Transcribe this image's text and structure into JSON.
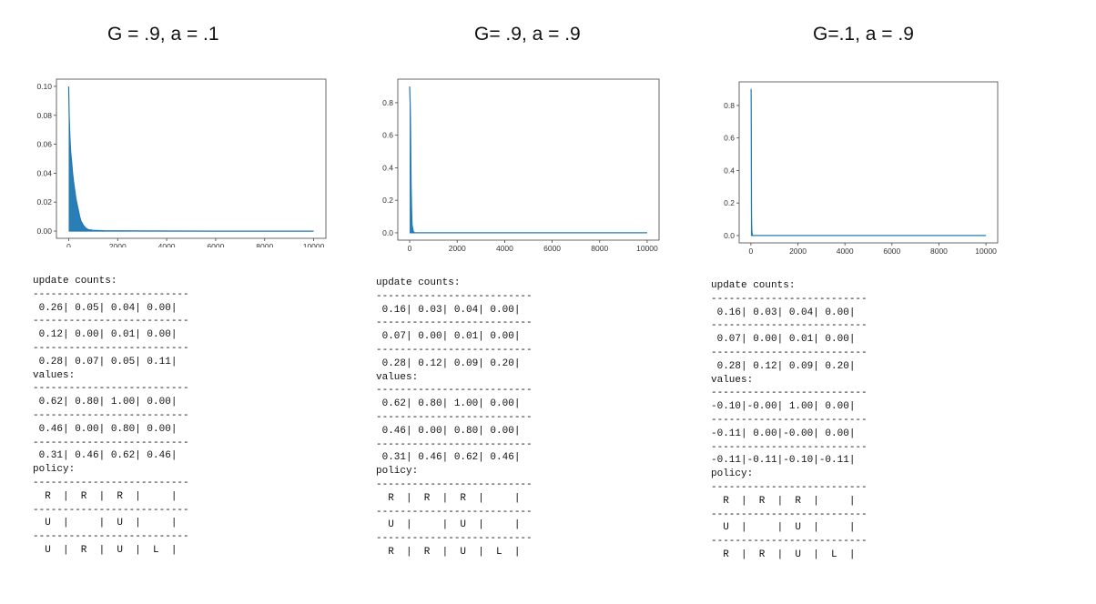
{
  "panels": [
    {
      "heading": "G = .9, a = .1",
      "chart_data": {
        "type": "line",
        "title": "",
        "xlabel": "",
        "ylabel": "",
        "xlim": [
          0,
          10000
        ],
        "ylim": [
          0,
          0.1
        ],
        "x_ticks": [
          "0",
          "2000",
          "4000",
          "6000",
          "8000",
          "10000"
        ],
        "x_tick_values": [
          0,
          2000,
          4000,
          6000,
          8000,
          10000
        ],
        "y_ticks": [
          "0.00",
          "0.02",
          "0.04",
          "0.06",
          "0.08",
          "0.10"
        ],
        "y_tick_values": [
          0,
          0.02,
          0.04,
          0.06,
          0.08,
          0.1
        ],
        "color": "#1f77b4",
        "series": [
          {
            "x": [
              0,
              20,
              50,
              80,
              120,
              160,
              200,
              250,
              300,
              350,
              400,
              450,
              500,
              600,
              700,
              800,
              1000,
              1500,
              3000,
              6000,
              10000
            ],
            "y": [
              0.1,
              0.08,
              0.065,
              0.055,
              0.048,
              0.04,
              0.034,
              0.028,
              0.022,
              0.018,
              0.014,
              0.01,
              0.007,
              0.004,
              0.002,
              0.001,
              0.0005,
              0.0002,
              0.0001,
              0.0,
              0.0
            ],
            "y_low": [
              0.0,
              0.0,
              0.0,
              0.0,
              0.0,
              0.0,
              0.0,
              0.0,
              0.0,
              0.0,
              0.0,
              0.0,
              0.0,
              0.0,
              0.0,
              0.0,
              0.0,
              0.0,
              0.0,
              0.0,
              0.0
            ]
          }
        ]
      },
      "text_lines": [
        "update counts:",
        "--------------------------",
        " 0.26| 0.05| 0.04| 0.00|",
        "--------------------------",
        " 0.12| 0.00| 0.01| 0.00|",
        "--------------------------",
        " 0.28| 0.07| 0.05| 0.11|",
        "values:",
        "--------------------------",
        " 0.62| 0.80| 1.00| 0.00|",
        "--------------------------",
        " 0.46| 0.00| 0.80| 0.00|",
        "--------------------------",
        " 0.31| 0.46| 0.62| 0.46|",
        "policy:",
        "--------------------------",
        "  R  |  R  |  R  |     |",
        "--------------------------",
        "  U  |     |  U  |     |",
        "--------------------------",
        "  U  |  R  |  U  |  L  |"
      ]
    },
    {
      "heading": "G= .9, a = .9",
      "chart_data": {
        "type": "line",
        "title": "",
        "xlabel": "",
        "ylabel": "",
        "xlim": [
          0,
          10000
        ],
        "ylim": [
          0,
          0.9
        ],
        "x_ticks": [
          "0",
          "2000",
          "4000",
          "6000",
          "8000",
          "10000"
        ],
        "x_tick_values": [
          0,
          2000,
          4000,
          6000,
          8000,
          10000
        ],
        "y_ticks": [
          "0.0",
          "0.2",
          "0.4",
          "0.6",
          "0.8"
        ],
        "y_tick_values": [
          0,
          0.2,
          0.4,
          0.6,
          0.8
        ],
        "color": "#1f77b4",
        "series": [
          {
            "x": [
              0,
              10,
              20,
              30,
              40,
              50,
              60,
              80,
              100,
              150,
              200,
              10000
            ],
            "y": [
              0.9,
              0.85,
              0.8,
              0.72,
              0.6,
              0.45,
              0.3,
              0.15,
              0.05,
              0.01,
              0.0,
              0.0
            ],
            "y_low": [
              0.0,
              0.0,
              0.0,
              0.0,
              0.0,
              0.0,
              0.0,
              0.0,
              0.0,
              0.0,
              0.0,
              0.0
            ]
          }
        ]
      },
      "text_lines": [
        "update counts:",
        "--------------------------",
        " 0.16| 0.03| 0.04| 0.00|",
        "--------------------------",
        " 0.07| 0.00| 0.01| 0.00|",
        "--------------------------",
        " 0.28| 0.12| 0.09| 0.20|",
        "values:",
        "--------------------------",
        " 0.62| 0.80| 1.00| 0.00|",
        "--------------------------",
        " 0.46| 0.00| 0.80| 0.00|",
        "--------------------------",
        " 0.31| 0.46| 0.62| 0.46|",
        "policy:",
        "--------------------------",
        "  R  |  R  |  R  |     |",
        "--------------------------",
        "  U  |     |  U  |     |",
        "--------------------------",
        "  R  |  R  |  U  |  L  |"
      ]
    },
    {
      "heading": "G=.1, a = .9",
      "chart_data": {
        "type": "line",
        "title": "",
        "xlabel": "",
        "ylabel": "",
        "xlim": [
          0,
          10000
        ],
        "ylim": [
          0,
          0.9
        ],
        "x_ticks": [
          "0",
          "2000",
          "4000",
          "6000",
          "8000",
          "10000"
        ],
        "x_tick_values": [
          0,
          2000,
          4000,
          6000,
          8000,
          10000
        ],
        "y_ticks": [
          "0.0",
          "0.2",
          "0.4",
          "0.6",
          "0.8"
        ],
        "y_tick_values": [
          0,
          0.2,
          0.4,
          0.6,
          0.8
        ],
        "color": "#1f77b4",
        "series": [
          {
            "x": [
              0,
              5,
              10,
              15,
              20,
              25,
              30,
              40,
              60,
              10000
            ],
            "y": [
              0.9,
              0.9,
              0.88,
              0.7,
              0.4,
              0.15,
              0.08,
              0.03,
              0.0,
              0.0
            ],
            "y_low": [
              0.0,
              0.0,
              0.0,
              0.0,
              0.0,
              0.0,
              0.0,
              0.0,
              0.0,
              0.0
            ]
          }
        ]
      },
      "text_lines": [
        "update counts:",
        "--------------------------",
        " 0.16| 0.03| 0.04| 0.00|",
        "--------------------------",
        " 0.07| 0.00| 0.01| 0.00|",
        "--------------------------",
        " 0.28| 0.12| 0.09| 0.20|",
        "values:",
        "--------------------------",
        "-0.10|-0.00| 1.00| 0.00|",
        "--------------------------",
        "-0.11| 0.00|-0.00| 0.00|",
        "--------------------------",
        "-0.11|-0.11|-0.10|-0.11|",
        "policy:",
        "--------------------------",
        "  R  |  R  |  R  |     |",
        "--------------------------",
        "  U  |     |  U  |     |",
        "--------------------------",
        "  R  |  R  |  U  |  L  |"
      ]
    }
  ]
}
